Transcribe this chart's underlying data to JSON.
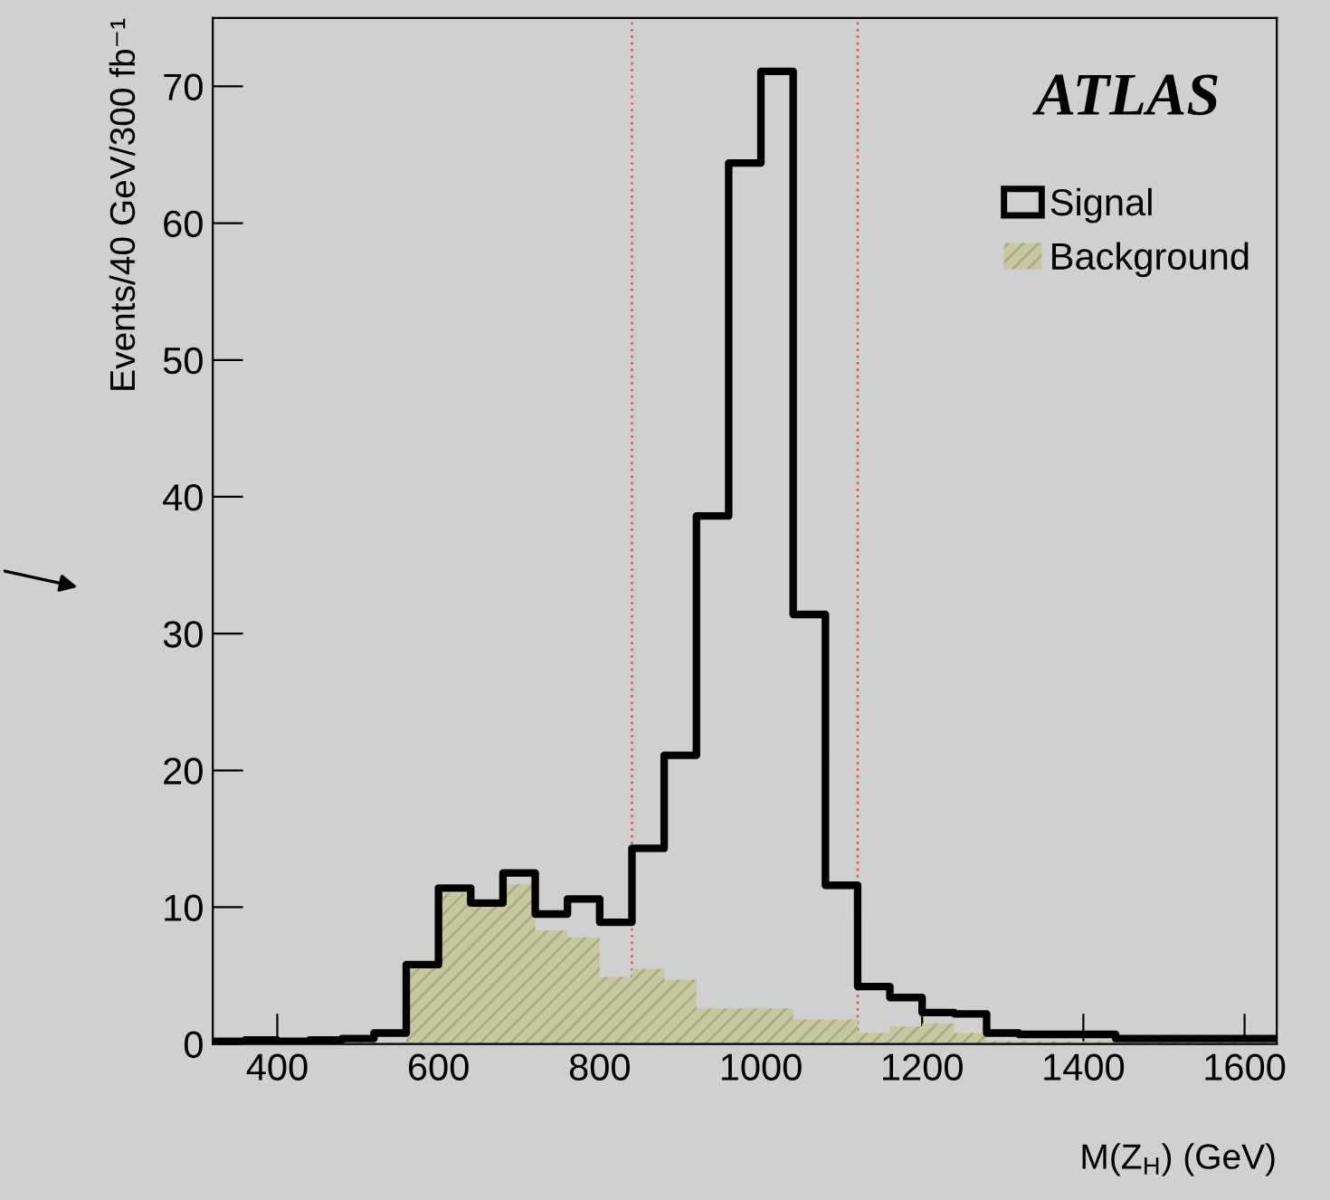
{
  "chart_data": {
    "type": "histogram",
    "xlabel": "M(Z$_{H}$) (GeV)",
    "ylabel": "Events/40 GeV/300 fb⁻¹",
    "annotations": [
      "ATLAS"
    ],
    "bins": [
      320,
      360,
      400,
      440,
      480,
      520,
      560,
      600,
      640,
      680,
      720,
      760,
      800,
      840,
      880,
      920,
      960,
      1000,
      1040,
      1080,
      1120,
      1160,
      1200,
      1240,
      1280,
      1320,
      1360,
      1400,
      1440,
      1480,
      1520,
      1560,
      1600,
      1640
    ],
    "series": [
      {
        "name": "Signal",
        "type": "step",
        "color": "#000000",
        "x": [
          320,
          360,
          400,
          440,
          480,
          520,
          560,
          600,
          640,
          680,
          720,
          760,
          800,
          840,
          880,
          920,
          960,
          1000,
          1040,
          1080,
          1120,
          1160,
          1200,
          1240,
          1280,
          1320,
          1360,
          1400,
          1440,
          1480,
          1520,
          1560,
          1600,
          1640
        ],
        "values": [
          0.2,
          0.3,
          0.2,
          0.3,
          0.4,
          0.8,
          5.8,
          11.4,
          10.3,
          12.5,
          9.5,
          10.6,
          8.9,
          14.3,
          21.1,
          38.6,
          64.4,
          71.1,
          31.4,
          11.6,
          4.2,
          3.4,
          2.3,
          2.2,
          0.8,
          0.7,
          0.7,
          0.7,
          0.4,
          0.4,
          0.4,
          0.4,
          0.4,
          0.4
        ]
      },
      {
        "name": "Background",
        "type": "histogram",
        "color": "#c8c8a0",
        "values": [
          0.1,
          0.1,
          0.1,
          0.1,
          0.1,
          0.1,
          5.8,
          11.0,
          10.5,
          11.7,
          8.3,
          7.8,
          4.9,
          5.5,
          4.7,
          2.6,
          2.6,
          2.6,
          1.8,
          1.8,
          0.8,
          1.3,
          1.5,
          0.8,
          0.2,
          0.2,
          0.2,
          0.2,
          0.2,
          0.2,
          0.2,
          0.2,
          0.2
        ]
      }
    ],
    "ref_lines": [
      {
        "axis": "x",
        "value": 840,
        "color": "#e06060",
        "line_style": "dotted"
      },
      {
        "axis": "x",
        "value": 1120,
        "color": "#e06060",
        "line_style": "dotted"
      }
    ],
    "xlim": [
      320,
      1640
    ],
    "xticks": [
      400,
      600,
      800,
      1000,
      1200,
      1400,
      1600
    ],
    "ylim": [
      0,
      75
    ],
    "yticks": [
      0,
      10,
      20,
      30,
      40,
      50,
      60,
      70
    ],
    "grid": false,
    "legend": "top right"
  }
}
